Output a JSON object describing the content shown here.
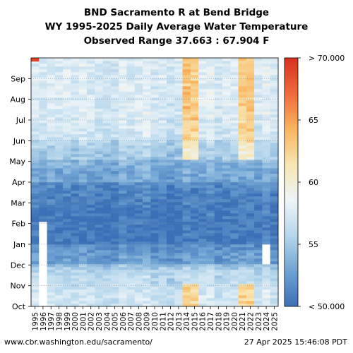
{
  "chart_data": {
    "type": "heatmap",
    "title_lines": [
      "BND Sacramento R at Bend Bridge",
      "WY 1995-2025 Daily Average Water Temperature",
      "Observed Range 37.663 : 67.904 F"
    ],
    "x_categories": [
      "1995",
      "1996",
      "1997",
      "1998",
      "1999",
      "2000",
      "2001",
      "2002",
      "2003",
      "2004",
      "2005",
      "2006",
      "2007",
      "2008",
      "2009",
      "2010",
      "2011",
      "2012",
      "2013",
      "2014",
      "2015",
      "2016",
      "2017",
      "2018",
      "2019",
      "2020",
      "2021",
      "2022",
      "2023",
      "2024",
      "2025"
    ],
    "y_tick_labels": [
      "Oct",
      "Nov",
      "Dec",
      "Jan",
      "Feb",
      "Mar",
      "Apr",
      "May",
      "Jun",
      "Jul",
      "Aug",
      "Sep"
    ],
    "colorbar": {
      "tick_labels": [
        "< 50.000",
        "55",
        "60",
        "65",
        "> 70.000"
      ],
      "range": [
        50,
        70
      ],
      "colors": [
        "#3b6fb6",
        "#6fa3d3",
        "#b7d7ec",
        "#eef5f8",
        "#f8e5b0",
        "#f9b45e",
        "#ef6a3c",
        "#d7301f"
      ]
    },
    "monthly_typical_values": {
      "Oct": 57,
      "Nov": 56,
      "Dec": 52.5,
      "Jan": 50.5,
      "Feb": 50.5,
      "Mar": 51,
      "Apr": 53,
      "May": 55,
      "Jun": 57,
      "Jul": 57.5,
      "Aug": 57.5,
      "Sep": 57.5
    },
    "notable_warm_years": [
      "2014",
      "2015",
      "2021",
      "2022"
    ],
    "missing_data_note": [
      "1996",
      "2024"
    ]
  },
  "footer": {
    "source": "www.cbr.washington.edu/sacramento/",
    "timestamp": "27 Apr 2025 15:46:08 PDT"
  }
}
